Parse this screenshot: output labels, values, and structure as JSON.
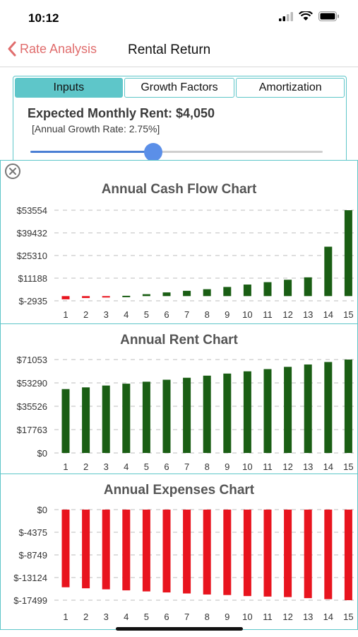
{
  "status": {
    "time": "10:12"
  },
  "nav": {
    "back_label": "Rate Analysis",
    "title": "Rental Return"
  },
  "tabs": [
    {
      "label": "Inputs",
      "active": true
    },
    {
      "label": "Growth Factors",
      "active": false
    },
    {
      "label": "Amortization",
      "active": false
    }
  ],
  "rent": {
    "title": "Expected Monthly Rent: $4,050",
    "growth_note": "[Annual Growth Rate: 2.75%]",
    "slider_fraction": 0.42
  },
  "colors": {
    "accent": "#5ec6c9",
    "back": "#e06d6d",
    "positive": "#1a5e14",
    "negative": "#e8141e",
    "slider": "#5b8fe8"
  },
  "icons": {
    "back": "chevron-left-icon",
    "close": "close-circle-icon",
    "signal": "signal-icon",
    "wifi": "wifi-icon",
    "battery": "battery-icon"
  },
  "chart_data": [
    {
      "type": "bar",
      "title": "Annual Cash Flow Chart",
      "categories": [
        "1",
        "2",
        "3",
        "4",
        "5",
        "6",
        "7",
        "8",
        "9",
        "10",
        "11",
        "12",
        "13",
        "14",
        "15"
      ],
      "yticks": [
        "$-2935",
        "$11188",
        "$25310",
        "$39432",
        "$53554"
      ],
      "ytick_values": [
        -2935,
        11188,
        25310,
        39432,
        53554
      ],
      "ylim": [
        -2935,
        53554
      ],
      "values": [
        -2000,
        -1200,
        -600,
        200,
        1200,
        2300,
        3300,
        4300,
        5700,
        7200,
        8700,
        10200,
        11700,
        30800,
        53554
      ]
    },
    {
      "type": "bar",
      "title": "Annual Rent Chart",
      "categories": [
        "1",
        "2",
        "3",
        "4",
        "5",
        "6",
        "7",
        "8",
        "9",
        "10",
        "11",
        "12",
        "13",
        "14",
        "15"
      ],
      "yticks": [
        "$0",
        "$17763",
        "$35526",
        "$53290",
        "$71053"
      ],
      "ytick_values": [
        0,
        17763,
        35526,
        53290,
        71053
      ],
      "ylim": [
        0,
        71053
      ],
      "values": [
        48600,
        49900,
        51300,
        52700,
        54200,
        55700,
        57200,
        58800,
        60400,
        62100,
        63800,
        65500,
        67300,
        69200,
        71053
      ]
    },
    {
      "type": "bar",
      "title": "Annual Expenses Chart",
      "categories": [
        "1",
        "2",
        "3",
        "4",
        "5",
        "6",
        "7",
        "8",
        "9",
        "10",
        "11",
        "12",
        "13",
        "14",
        "15"
      ],
      "yticks": [
        "$0",
        "$-4375",
        "$-8749",
        "$-13124",
        "$-17499"
      ],
      "ytick_values": [
        0,
        -4375,
        -8749,
        -13124,
        -17499
      ],
      "ylim": [
        -17499,
        0
      ],
      "values": [
        -15000,
        -15200,
        -15400,
        -15600,
        -15800,
        -16000,
        -16200,
        -16400,
        -16500,
        -16700,
        -16800,
        -16900,
        -17100,
        -17300,
        -17499
      ]
    }
  ]
}
